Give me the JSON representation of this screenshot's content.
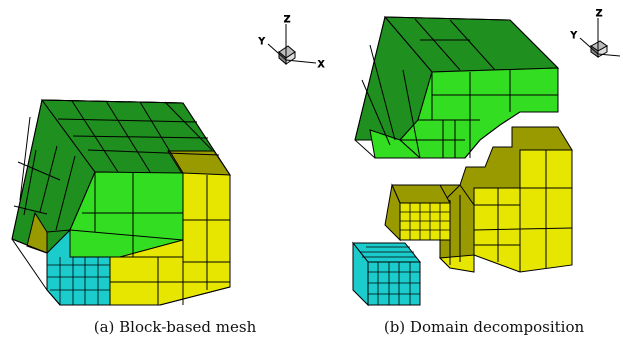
{
  "figure": {
    "panels": [
      {
        "id": "a",
        "caption": "(a) Block-based mesh"
      },
      {
        "id": "b",
        "caption": "(b) Domain decomposition"
      }
    ],
    "axes_triad": {
      "x_label": "X",
      "y_label": "Y",
      "z_label": "Z"
    }
  },
  "colors": {
    "dark_green": "#1f8f1f",
    "light_green": "#33dd22",
    "olive": "#999900",
    "yellow": "#e6e600",
    "cyan": "#1ccccc",
    "edge": "#000000"
  }
}
